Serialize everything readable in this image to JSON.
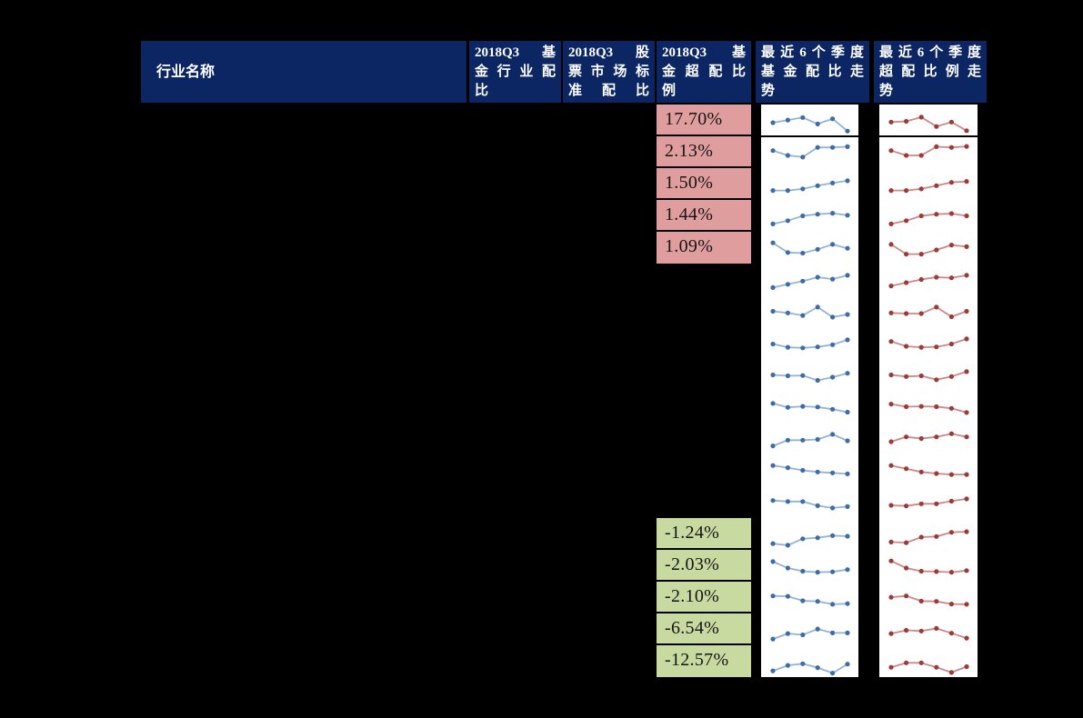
{
  "colors": {
    "background": "#000000",
    "header_bg": "#0C2663",
    "header_text": "#FFFFFF",
    "positive_cell_bg": "#DF9E9D",
    "negative_cell_bg": "#C9DAA1",
    "cell_text": "#141414",
    "fund_trend_line": "#95B3D7",
    "fund_trend_marker": "#3E6CA8",
    "over_trend_line": "#CE8886",
    "over_trend_marker": "#9C3A37",
    "panel_bg": "#FFFFFF",
    "border": "#000000"
  },
  "table": {
    "headers": [
      {
        "label": "行业名称"
      },
      {
        "label": "2018Q3 基\n金行业配\n比"
      },
      {
        "label": "2018Q3 股\n票市场标\n准配比"
      },
      {
        "label": "2018Q3 基\n金超配比\n例"
      },
      {
        "label": "最近6个季度\n基金配比走\n势"
      },
      {
        "label": "最近6个季度\n超配比例走\n势"
      }
    ],
    "positive_values": [
      "17.70%",
      "2.13%",
      "1.50%",
      "1.44%",
      "1.09%"
    ],
    "negative_values": [
      "-1.24%",
      "-2.03%",
      "-2.10%",
      "-6.54%",
      "-12.57%"
    ]
  },
  "chart_data": {
    "type": "table",
    "columns": [
      "行业名称",
      "2018Q3 基金行业配比",
      "2018Q3 股票市场标准配比",
      "2018Q3 基金超配比例",
      "最近6个季度基金配比走势",
      "最近6个季度超配比例走势"
    ],
    "row_count": 18,
    "over_allocation_positive": [
      17.7,
      2.13,
      1.5,
      1.44,
      1.09
    ],
    "over_allocation_negative": [
      -1.24,
      -2.03,
      -2.1,
      -6.54,
      -12.57
    ],
    "sparklines": {
      "points_per_chart": 6,
      "scale_note": "normalized 0-10 estimates read from pixel heights",
      "fund_allocation_trend": [
        [
          4.8,
          5.6,
          6.4,
          4.4,
          6.0,
          2.2
        ],
        [
          6.0,
          4.5,
          4.0,
          7.0,
          7.0,
          7.2
        ],
        [
          3.5,
          3.5,
          4.0,
          5.0,
          5.8,
          6.5
        ],
        [
          3.0,
          4.0,
          5.5,
          6.0,
          6.3,
          5.7
        ],
        [
          7.0,
          4.0,
          3.8,
          5.0,
          6.5,
          5.3
        ],
        [
          3.0,
          4.0,
          5.0,
          6.2,
          5.6,
          6.8
        ],
        [
          5.5,
          5.0,
          4.2,
          6.8,
          3.7,
          4.5
        ],
        [
          5.2,
          4.2,
          4.0,
          4.3,
          5.0,
          6.5
        ],
        [
          5.5,
          5.2,
          5.3,
          3.8,
          4.8,
          6.0
        ],
        [
          6.5,
          5.3,
          5.6,
          5.4,
          4.7,
          3.8
        ],
        [
          3.2,
          5.0,
          5.0,
          5.2,
          6.8,
          4.8
        ],
        [
          7.0,
          6.3,
          5.5,
          5.0,
          4.7,
          4.4
        ],
        [
          6.0,
          5.7,
          5.7,
          4.4,
          3.7,
          4.1
        ],
        [
          2.5,
          2.0,
          4.0,
          4.3,
          5.0,
          4.8
        ],
        [
          6.8,
          4.8,
          3.8,
          3.5,
          3.6,
          4.3
        ],
        [
          6.0,
          5.9,
          4.5,
          4.3,
          3.4,
          3.6
        ],
        [
          2.5,
          4.2,
          3.8,
          5.6,
          4.4,
          4.4
        ],
        [
          2.5,
          4.2,
          4.7,
          3.5,
          1.8,
          4.6
        ]
      ],
      "over_allocation_trend": [
        [
          5.0,
          5.2,
          6.5,
          3.6,
          5.0,
          2.3
        ],
        [
          6.0,
          4.5,
          4.5,
          7.2,
          7.0,
          7.3
        ],
        [
          3.5,
          3.5,
          4.0,
          5.0,
          6.0,
          6.3
        ],
        [
          3.0,
          4.0,
          5.5,
          6.0,
          6.2,
          5.5
        ],
        [
          6.5,
          3.5,
          3.5,
          4.8,
          6.3,
          5.8
        ],
        [
          3.5,
          4.5,
          5.5,
          6.2,
          6.0,
          6.8
        ],
        [
          5.0,
          4.8,
          4.8,
          6.8,
          3.8,
          5.5
        ],
        [
          6.0,
          4.5,
          4.2,
          4.3,
          5.2,
          6.8
        ],
        [
          5.5,
          5.0,
          5.2,
          4.0,
          5.0,
          6.5
        ],
        [
          6.3,
          5.5,
          5.6,
          5.5,
          5.0,
          3.7
        ],
        [
          4.5,
          6.0,
          5.5,
          6.0,
          7.0,
          6.0
        ],
        [
          7.0,
          6.0,
          5.0,
          4.5,
          4.2,
          4.2
        ],
        [
          4.5,
          4.3,
          5.0,
          5.0,
          5.8,
          6.5
        ],
        [
          3.0,
          2.8,
          4.5,
          4.7,
          6.0,
          6.2
        ],
        [
          7.0,
          4.8,
          3.8,
          3.7,
          3.5,
          4.0
        ],
        [
          5.6,
          6.0,
          4.4,
          4.3,
          3.5,
          3.4
        ],
        [
          4.2,
          5.2,
          5.0,
          5.8,
          4.3,
          2.8
        ],
        [
          3.6,
          5.0,
          5.0,
          3.6,
          2.0,
          3.8
        ]
      ]
    }
  }
}
